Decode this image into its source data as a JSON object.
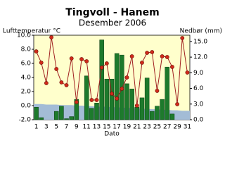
{
  "chart_data": {
    "type": "combo",
    "title": "Tingvoll - Hanem",
    "subtitle": "Desember 2006",
    "y_label": "Lufttemperatur °C",
    "y2_label": "Nedbør (mm)",
    "x_label": "Dato",
    "categories": [
      "1",
      null,
      "3",
      null,
      "5",
      null,
      "7",
      null,
      "9",
      null,
      "11",
      null,
      "13",
      null,
      "15",
      null,
      "17",
      null,
      "19",
      null,
      "21",
      null,
      "23",
      null,
      "25",
      null,
      "27",
      null,
      "29",
      null,
      "31"
    ],
    "ylim": [
      -2,
      10
    ],
    "yticks": [
      {
        "value": -2,
        "label": "-2.0"
      },
      {
        "value": 0,
        "label": "0.0"
      },
      {
        "value": 2,
        "label": "2.0"
      },
      {
        "value": 4,
        "label": "4.0"
      },
      {
        "value": 6,
        "label": "6.0"
      },
      {
        "value": 8,
        "label": "8.0"
      },
      {
        "value": 10,
        "label": "10.0"
      }
    ],
    "y2lim": [
      0,
      16.2
    ],
    "y2ticks": [
      {
        "value": 0,
        "label": "0.0"
      },
      {
        "value": 3,
        "label": "3.0"
      },
      {
        "value": 6,
        "label": "6.0"
      },
      {
        "value": 9,
        "label": "9.0"
      },
      {
        "value": 12,
        "label": "12.0"
      },
      {
        "value": 15,
        "label": "15.0"
      }
    ],
    "plot_background": "#ffffcc",
    "series": [
      {
        "kind": "area",
        "axis": "y2",
        "color": "#a3bcd6",
        "values": [
          3.0,
          3.0,
          2.9,
          2.9,
          2.9,
          2.8,
          2.8,
          2.8,
          2.7,
          2.7,
          2.6,
          2.6,
          2.5,
          2.5,
          2.5,
          2.4,
          2.4,
          2.3,
          2.3,
          2.2,
          2.2,
          2.1,
          2.1,
          2.0,
          2.0,
          1.9,
          1.9,
          1.8,
          1.8,
          1.7,
          1.7
        ]
      },
      {
        "kind": "bar",
        "axis": "y2",
        "color": "#1d7a2c",
        "values": [
          2.4,
          0.4,
          0,
          0,
          1.6,
          2.6,
          0.2,
          0.6,
          3.9,
          0,
          8.4,
          2.2,
          3.2,
          15.3,
          7.8,
          7.8,
          12.7,
          12.4,
          6.9,
          5.9,
          2.4,
          4.2,
          8.0,
          1.6,
          2.6,
          3.9,
          10.1,
          1.1,
          0,
          0,
          0
        ]
      },
      {
        "kind": "line",
        "axis": "y",
        "color": "#a02020",
        "values": [
          7.7,
          6.1,
          3.2,
          9.7,
          5.2,
          3.3,
          2.9,
          6.7,
          0.5,
          6.6,
          6.3,
          0.8,
          0.8,
          5.4,
          6.0,
          1.7,
          1.0,
          2.4,
          4.0,
          7.0,
          0.0,
          6.1,
          7.5,
          7.6,
          2.1,
          7.0,
          6.9,
          5.5,
          0.2,
          9.6,
          4.7
        ]
      }
    ]
  }
}
